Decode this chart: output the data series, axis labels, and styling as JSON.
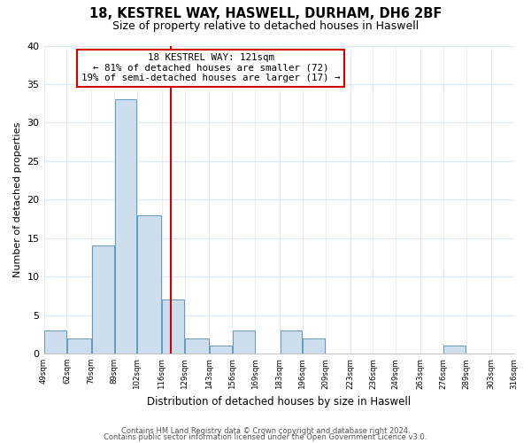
{
  "title": "18, KESTREL WAY, HASWELL, DURHAM, DH6 2BF",
  "subtitle": "Size of property relative to detached houses in Haswell",
  "xlabel": "Distribution of detached houses by size in Haswell",
  "ylabel": "Number of detached properties",
  "bar_edges": [
    49,
    62,
    76,
    89,
    102,
    116,
    129,
    143,
    156,
    169,
    183,
    196,
    209,
    223,
    236,
    249,
    263,
    276,
    289,
    303,
    316
  ],
  "bar_heights": [
    3,
    2,
    14,
    33,
    18,
    7,
    2,
    1,
    3,
    0,
    3,
    2,
    0,
    0,
    0,
    0,
    0,
    1,
    0,
    0
  ],
  "bar_color": "#ccdded",
  "bar_edgecolor": "#6699bb",
  "vline_x": 121,
  "vline_color": "#cc0000",
  "ylim": [
    0,
    40
  ],
  "annotation_title": "18 KESTREL WAY: 121sqm",
  "annotation_line1": "← 81% of detached houses are smaller (72)",
  "annotation_line2": "19% of semi-detached houses are larger (17) →",
  "annotation_box_color": "#ffffff",
  "annotation_box_edgecolor": "#cc0000",
  "footer1": "Contains HM Land Registry data © Crown copyright and database right 2024.",
  "footer2": "Contains public sector information licensed under the Open Government Licence v3.0.",
  "tick_labels": [
    "49sqm",
    "62sqm",
    "76sqm",
    "89sqm",
    "102sqm",
    "116sqm",
    "129sqm",
    "143sqm",
    "156sqm",
    "169sqm",
    "183sqm",
    "196sqm",
    "209sqm",
    "223sqm",
    "236sqm",
    "249sqm",
    "263sqm",
    "276sqm",
    "289sqm",
    "303sqm",
    "316sqm"
  ],
  "background_color": "#ffffff",
  "grid_color": "#dde8f0"
}
